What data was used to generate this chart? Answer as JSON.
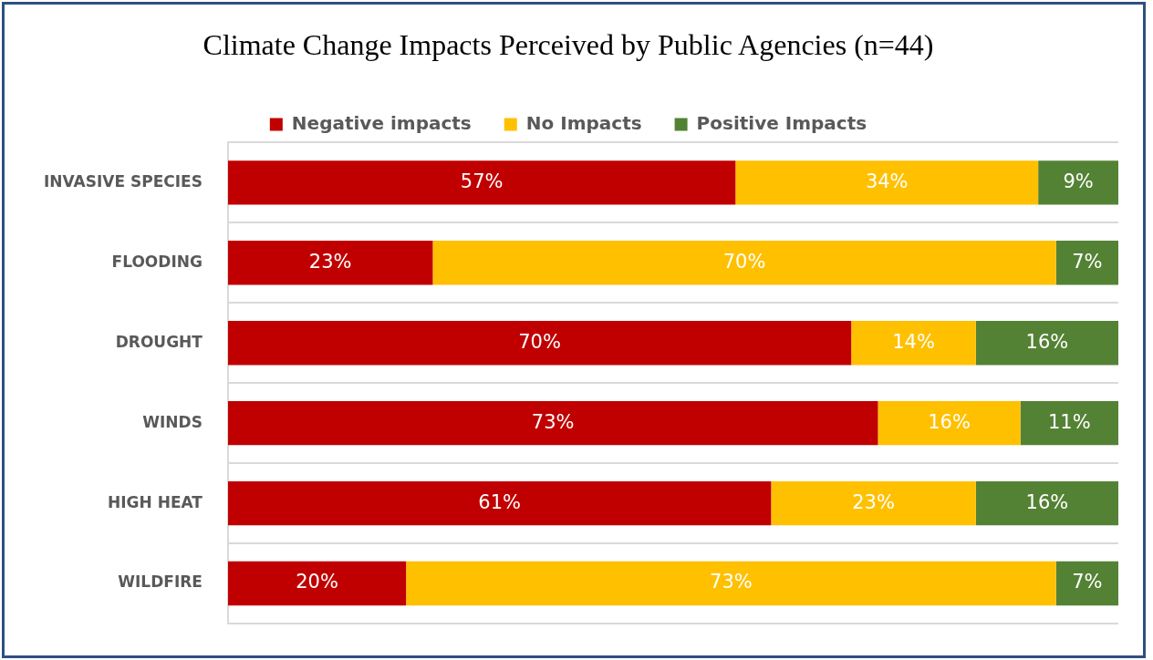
{
  "chart_data": {
    "type": "bar",
    "title": "Climate Change Impacts Perceived by Public Agencies (n=44)",
    "orientation": "horizontal",
    "stacked": true,
    "categories": [
      "INVASIVE SPECIES",
      "FLOODING",
      "DROUGHT",
      "WINDS",
      "HIGH HEAT",
      "WILDFIRE"
    ],
    "series": [
      {
        "name": "Negative impacts",
        "color": "#c00000",
        "values": [
          57,
          23,
          70,
          73,
          61,
          20
        ],
        "value_labels": [
          "57%",
          "23%",
          "70%",
          "73%",
          "61%",
          "20%"
        ]
      },
      {
        "name": "No Impacts",
        "color": "#ffc000",
        "values": [
          34,
          70,
          14,
          16,
          23,
          73
        ],
        "value_labels": [
          "34%",
          "70%",
          "14%",
          "16%",
          "23%",
          "73%"
        ]
      },
      {
        "name": "Positive Impacts",
        "color": "#548235",
        "values": [
          9,
          7,
          16,
          11,
          16,
          7
        ],
        "value_labels": [
          "9%",
          "7%",
          "16%",
          "11%",
          "16%",
          "7%"
        ]
      }
    ],
    "xlim": [
      0,
      100
    ],
    "grid": "y",
    "legend": "top",
    "tick_labels": "y"
  }
}
